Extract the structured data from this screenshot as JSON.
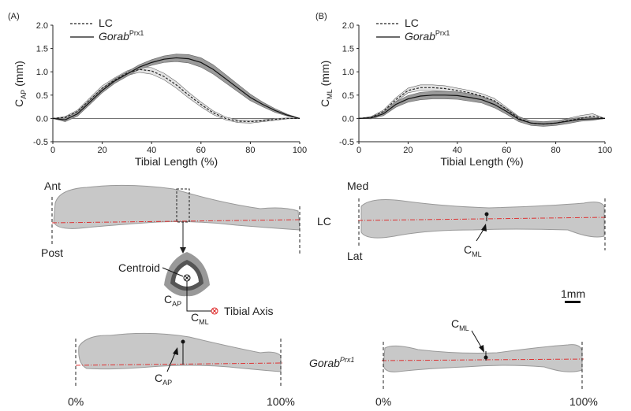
{
  "chart_data": [
    {
      "type": "line",
      "panel": "(A)",
      "ylabel": "C",
      "ylabel_sub": "AP",
      "ylabel_unit": "(mm)",
      "xlabel": "Tibial Length (%)",
      "x": [
        0,
        5,
        10,
        15,
        20,
        25,
        30,
        35,
        40,
        45,
        50,
        55,
        60,
        65,
        70,
        75,
        80,
        85,
        90,
        95,
        100
      ],
      "xlim": [
        0,
        100
      ],
      "xticks": [
        0,
        20,
        40,
        60,
        80,
        100
      ],
      "ylim": [
        -0.5,
        2.0
      ],
      "yticks": [
        -0.5,
        {
          "value": 0,
          "label": "0.0"
        },
        0.5,
        {
          "value": 1,
          "label": "1.0"
        },
        1.5,
        {
          "value": 2,
          "label": "2.0"
        }
      ],
      "series": [
        {
          "name": "LC",
          "linestyle": "dashed",
          "color": "#222222",
          "band_color": "#e4e4e4",
          "values": [
            0,
            0.02,
            0.15,
            0.4,
            0.65,
            0.82,
            0.97,
            1.05,
            1.02,
            0.9,
            0.72,
            0.5,
            0.3,
            0.12,
            0.0,
            -0.06,
            -0.07,
            -0.05,
            -0.02,
            0.0,
            0
          ],
          "spread": [
            0,
            0.02,
            0.03,
            0.04,
            0.05,
            0.05,
            0.05,
            0.06,
            0.07,
            0.07,
            0.07,
            0.06,
            0.05,
            0.04,
            0.03,
            0.03,
            0.03,
            0.02,
            0.02,
            0.01,
            0
          ]
        },
        {
          "name": "Gorab",
          "name_superscript": "Prx1",
          "linestyle": "solid",
          "color": "#111111",
          "band_color": "#9a9a9a",
          "values": [
            0,
            -0.03,
            0.1,
            0.35,
            0.6,
            0.8,
            0.95,
            1.1,
            1.2,
            1.27,
            1.3,
            1.28,
            1.2,
            1.05,
            0.85,
            0.65,
            0.45,
            0.3,
            0.17,
            0.07,
            0
          ],
          "spread": [
            0,
            0.04,
            0.05,
            0.05,
            0.05,
            0.05,
            0.05,
            0.05,
            0.06,
            0.07,
            0.08,
            0.09,
            0.1,
            0.1,
            0.09,
            0.08,
            0.07,
            0.05,
            0.04,
            0.02,
            0
          ]
        }
      ]
    },
    {
      "type": "line",
      "panel": "(B)",
      "ylabel": "C",
      "ylabel_sub": "ML",
      "ylabel_unit": "(mm)",
      "xlabel": "Tibial Length (%)",
      "x": [
        0,
        5,
        10,
        15,
        20,
        25,
        30,
        35,
        40,
        45,
        50,
        55,
        60,
        65,
        70,
        75,
        80,
        85,
        90,
        95,
        100
      ],
      "xlim": [
        0,
        100
      ],
      "xticks": [
        0,
        20,
        40,
        60,
        80,
        100
      ],
      "ylim": [
        -0.5,
        2.0
      ],
      "yticks": [
        -0.5,
        {
          "value": 0,
          "label": "0.0"
        },
        0.5,
        {
          "value": 1,
          "label": "1.0"
        },
        1.5,
        {
          "value": 2,
          "label": "2.0"
        }
      ],
      "series": [
        {
          "name": "LC",
          "linestyle": "dashed",
          "color": "#222222",
          "band_color": "#e4e4e4",
          "values": [
            0,
            0.02,
            0.15,
            0.4,
            0.6,
            0.66,
            0.66,
            0.64,
            0.6,
            0.55,
            0.48,
            0.38,
            0.2,
            0.0,
            -0.1,
            -0.12,
            -0.1,
            -0.05,
            0.0,
            0.05,
            0
          ],
          "spread": [
            0,
            0.02,
            0.03,
            0.04,
            0.05,
            0.06,
            0.06,
            0.06,
            0.05,
            0.05,
            0.05,
            0.05,
            0.04,
            0.04,
            0.04,
            0.04,
            0.04,
            0.05,
            0.06,
            0.05,
            0
          ]
        },
        {
          "name": "Gorab",
          "name_superscript": "Prx1",
          "linestyle": "solid",
          "color": "#111111",
          "band_color": "#9a9a9a",
          "values": [
            0,
            0.01,
            0.1,
            0.3,
            0.42,
            0.48,
            0.5,
            0.5,
            0.49,
            0.45,
            0.4,
            0.3,
            0.15,
            -0.02,
            -0.1,
            -0.12,
            -0.1,
            -0.06,
            -0.02,
            -0.01,
            0
          ],
          "spread": [
            0,
            0.02,
            0.04,
            0.06,
            0.07,
            0.08,
            0.08,
            0.08,
            0.08,
            0.08,
            0.07,
            0.07,
            0.06,
            0.05,
            0.05,
            0.05,
            0.05,
            0.05,
            0.04,
            0.03,
            0
          ]
        }
      ]
    }
  ],
  "figure": {
    "ant": "Ant",
    "post": "Post",
    "med": "Med",
    "lat": "Lat",
    "lc": "LC",
    "centroid": "Centroid",
    "c": "C",
    "ap": "AP",
    "ml": "ML",
    "tibial_axis": "Tibial Axis",
    "scale": "1mm",
    "gorab": "Gorab",
    "prx1": "Prx1",
    "start": "0%",
    "end": "100%"
  }
}
